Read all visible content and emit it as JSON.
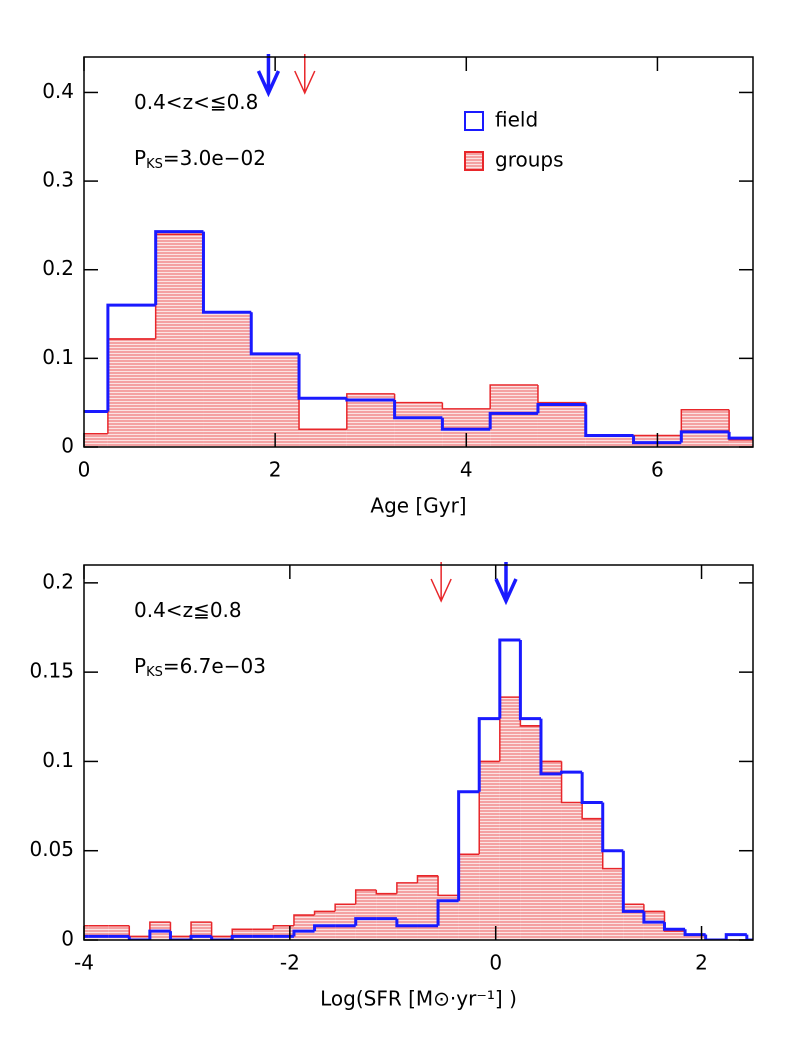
{
  "chart_data": [
    {
      "type": "histogram",
      "xlabel": "Age [Gyr]",
      "xlim": [
        0,
        7
      ],
      "ylim": [
        0,
        0.44
      ],
      "xticks": [
        0,
        2,
        4,
        6
      ],
      "yticks": [
        0,
        0.1,
        0.2,
        0.3,
        0.4
      ],
      "annotations": [
        {
          "text": "0.4<z<≦0.8"
        },
        {
          "text": "P",
          "subscript": "KS",
          "suffix": "=3.0e−02"
        }
      ],
      "legend": true,
      "bins": [
        -0.25,
        0.25,
        0.75,
        1.25,
        1.75,
        2.25,
        2.75,
        3.25,
        3.75,
        4.25,
        4.75,
        5.25,
        5.75,
        6.25,
        6.75,
        7.25
      ],
      "series": [
        {
          "name": "groups",
          "color": "#e8262a",
          "hatch": true,
          "median": 2.31,
          "values": [
            0.015,
            0.122,
            0.24,
            0.152,
            0.105,
            0.02,
            0.06,
            0.05,
            0.043,
            0.07,
            0.05,
            0.013,
            0.013,
            0.042,
            0.008
          ]
        },
        {
          "name": "field",
          "color": "#1a1aff",
          "hatch": false,
          "median": 1.93,
          "values": [
            0.04,
            0.16,
            0.243,
            0.152,
            0.105,
            0.055,
            0.053,
            0.033,
            0.02,
            0.038,
            0.048,
            0.013,
            0.005,
            0.017,
            0.01
          ]
        }
      ]
    },
    {
      "type": "histogram",
      "xlabel": "Log(SFR [M⊙·yr⁻¹] )",
      "xlim": [
        -4,
        2.5
      ],
      "ylim": [
        0,
        0.21
      ],
      "xticks": [
        -4,
        -2,
        0,
        2
      ],
      "yticks": [
        0,
        0.05,
        0.1,
        0.15,
        0.2
      ],
      "annotations": [
        {
          "text": "0.4<z≦0.8"
        },
        {
          "text": "P",
          "subscript": "KS",
          "suffix": "=6.7e−03"
        }
      ],
      "legend": false,
      "bins": [
        -4.16,
        -3.96,
        -3.76,
        -3.56,
        -3.36,
        -3.16,
        -2.96,
        -2.76,
        -2.56,
        -2.36,
        -2.16,
        -1.96,
        -1.76,
        -1.56,
        -1.36,
        -1.16,
        -0.96,
        -0.76,
        -0.56,
        -0.36,
        -0.16,
        0.04,
        0.24,
        0.44,
        0.64,
        0.84,
        1.04,
        1.24,
        1.44,
        1.64,
        1.84,
        2.04,
        2.24,
        2.44,
        2.64
      ],
      "series": [
        {
          "color": "#e8262a",
          "hatch": true,
          "median": -0.53,
          "values": [
            0.008,
            0.008,
            0.008,
            0.002,
            0.01,
            0.002,
            0.01,
            0.002,
            0.006,
            0.006,
            0.008,
            0.014,
            0.016,
            0.02,
            0.028,
            0.026,
            0.032,
            0.036,
            0.025,
            0.048,
            0.1,
            0.136,
            0.12,
            0.1,
            0.077,
            0.068,
            0.04,
            0.02,
            0.016,
            0.005,
            0.003,
            0,
            0,
            0
          ]
        },
        {
          "color": "#1a1aff",
          "hatch": false,
          "median": 0.1,
          "values": [
            0.002,
            0.002,
            0.002,
            0,
            0.005,
            0,
            0.002,
            0,
            0.002,
            0.002,
            0.002,
            0.005,
            0.008,
            0.008,
            0.012,
            0.012,
            0.008,
            0.008,
            0.022,
            0.083,
            0.124,
            0.168,
            0.124,
            0.093,
            0.094,
            0.077,
            0.05,
            0.016,
            0.01,
            0.006,
            0.003,
            0,
            0.003,
            0
          ]
        }
      ]
    }
  ]
}
